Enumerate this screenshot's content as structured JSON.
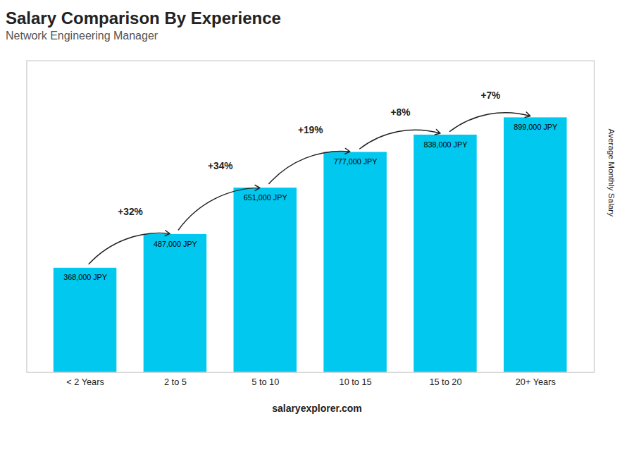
{
  "chart_data": {
    "type": "bar",
    "title": "Salary Comparison By Experience",
    "subtitle": "Network Engineering Manager",
    "categories": [
      "< 2 Years",
      "2 to 5",
      "5 to 10",
      "10 to 15",
      "15 to 20",
      "20+ Years"
    ],
    "values": [
      368000,
      487000,
      651000,
      777000,
      838000,
      899000
    ],
    "value_labels": [
      "368,000 JPY",
      "487,000 JPY",
      "651,000 JPY",
      "777,000 JPY",
      "838,000 JPY",
      "899,000 JPY"
    ],
    "data_labels": true,
    "color": "#00c8ee",
    "ylabel": "Average Monthly Salary",
    "ylim": [
      0,
      1100000
    ],
    "tick_labels": "x",
    "annotations": [
      {
        "from": "< 2 Years",
        "to": "2 to 5",
        "text": "+32%"
      },
      {
        "from": "2 to 5",
        "to": "5 to 10",
        "text": "+34%"
      },
      {
        "from": "5 to 10",
        "to": "10 to 15",
        "text": "+19%"
      },
      {
        "from": "10 to 15",
        "to": "15 to 20",
        "text": "+8%"
      },
      {
        "from": "15 to 20",
        "to": "20+ Years",
        "text": "+7%"
      }
    ],
    "caption": [
      "salary",
      "explorer.com"
    ]
  }
}
